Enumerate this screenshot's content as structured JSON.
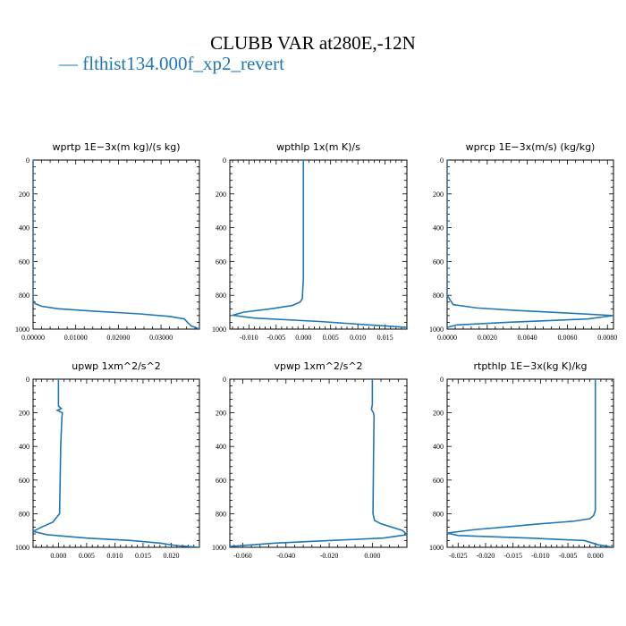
{
  "title": "CLUBB VAR at280E,-12N",
  "legend": {
    "label": "flthist134.000f_xp2_revert",
    "marker": "—",
    "color": "#1f77b4"
  },
  "chart_data": [
    {
      "type": "line",
      "title": "wprtp  1E−3x(m kg)/(s kg)",
      "xlim": [
        0,
        0.039
      ],
      "xticks": [
        0,
        0.01,
        0.02,
        0.03
      ],
      "xticklabels": [
        "0.00000",
        "0.01000",
        "0.02000",
        "0.03000"
      ],
      "ylim": [
        1000,
        0
      ],
      "yticks": [
        0,
        200,
        400,
        600,
        800,
        1000
      ],
      "yticklabels": [
        "0",
        "200",
        "400",
        "600",
        "800",
        "1000"
      ],
      "series": [
        {
          "color": "#1f77b4",
          "x": [
            0,
            0,
            0,
            0.0005,
            0.002,
            0.006,
            0.015,
            0.025,
            0.032,
            0.0355,
            0.036,
            0.037,
            0.039
          ],
          "y": [
            0,
            500,
            830,
            850,
            865,
            880,
            895,
            910,
            925,
            940,
            955,
            980,
            1000
          ]
        }
      ]
    },
    {
      "type": "line",
      "title": "wpthlp  1x(m K)/s",
      "xlim": [
        -0.0135,
        0.019
      ],
      "xticks": [
        -0.01,
        -0.005,
        0,
        0.005,
        0.01,
        0.015
      ],
      "xticklabels": [
        "-0.010",
        "-0.005",
        "0.000",
        "0.005",
        "0.010",
        "0.015"
      ],
      "ylim": [
        1000,
        0
      ],
      "yticks": [
        0,
        200,
        400,
        600,
        800,
        1000
      ],
      "yticklabels": [
        "0",
        "200",
        "400",
        "600",
        "800",
        "1000"
      ],
      "series": [
        {
          "color": "#1f77b4",
          "x": [
            0,
            0,
            -0.0002,
            -0.0006,
            -0.002,
            -0.006,
            -0.011,
            -0.013,
            -0.009,
            0.003,
            0.012,
            0.019
          ],
          "y": [
            0,
            700,
            820,
            840,
            860,
            880,
            900,
            918,
            935,
            955,
            975,
            990
          ]
        }
      ]
    },
    {
      "type": "line",
      "title": "wprcp  1E−3x(m/s) (kg/kg)",
      "xlim": [
        0,
        0.0083
      ],
      "xticks": [
        0,
        0.002,
        0.004,
        0.006,
        0.008
      ],
      "xticklabels": [
        "0.0000",
        "0.0020",
        "0.0040",
        "0.0060",
        "0.0080"
      ],
      "ylim": [
        1000,
        0
      ],
      "yticks": [
        0,
        200,
        400,
        600,
        800,
        1000
      ],
      "yticklabels": [
        "0",
        "200",
        "400",
        "600",
        "800",
        "1000"
      ],
      "series": [
        {
          "color": "#1f77b4",
          "x": [
            0,
            0,
            0.0003,
            0.0015,
            0.0035,
            0.006,
            0.0083,
            0.007,
            0.003,
            0.0005,
            0
          ],
          "y": [
            0,
            800,
            855,
            875,
            890,
            905,
            920,
            940,
            960,
            975,
            990
          ]
        }
      ]
    },
    {
      "type": "line",
      "title": "upwp  1xm^2/s^2",
      "xlim": [
        -0.0045,
        0.025
      ],
      "xticks": [
        0,
        0.005,
        0.01,
        0.015,
        0.02
      ],
      "xticklabels": [
        "0.000",
        "0.005",
        "0.010",
        "0.015",
        "0.020"
      ],
      "ylim": [
        1000,
        0
      ],
      "yticks": [
        0,
        200,
        400,
        600,
        800,
        1000
      ],
      "yticklabels": [
        "0",
        "200",
        "400",
        "600",
        "800",
        "1000"
      ],
      "series": [
        {
          "color": "#1f77b4",
          "x": [
            0,
            0,
            0.0005,
            -0.0002,
            0.0007,
            0.0006,
            0.0004,
            0.0002,
            -0.001,
            -0.003,
            -0.0045,
            -0.002,
            0.005,
            0.013,
            0.018,
            0.021,
            0.025
          ],
          "y": [
            0,
            160,
            175,
            185,
            200,
            230,
            400,
            800,
            850,
            880,
            905,
            925,
            945,
            960,
            975,
            990,
            1000
          ]
        }
      ]
    },
    {
      "type": "line",
      "title": "vpwp  1xm^2/s^2",
      "xlim": [
        -0.066,
        0.016
      ],
      "xticks": [
        -0.06,
        -0.04,
        -0.02,
        0
      ],
      "xticklabels": [
        "-0.060",
        "-0.040",
        "-0.020",
        "0.000"
      ],
      "ylim": [
        1000,
        0
      ],
      "yticks": [
        0,
        200,
        400,
        600,
        800,
        1000
      ],
      "yticklabels": [
        "0",
        "200",
        "400",
        "600",
        "800",
        "1000"
      ],
      "series": [
        {
          "color": "#1f77b4",
          "x": [
            0,
            0,
            -0.0004,
            0.0005,
            0.0008,
            0.0006,
            0.0003,
            0.001,
            0.004,
            0.009,
            0.014,
            0.016,
            0.005,
            -0.02,
            -0.045,
            -0.066
          ],
          "y": [
            0,
            150,
            180,
            200,
            220,
            400,
            800,
            840,
            860,
            880,
            900,
            925,
            945,
            960,
            975,
            995
          ]
        }
      ]
    },
    {
      "type": "line",
      "title": "rtpthlp  1E−3x(kg K)/kg",
      "xlim": [
        -0.027,
        0.0033
      ],
      "xticks": [
        -0.025,
        -0.02,
        -0.015,
        -0.01,
        -0.005,
        0
      ],
      "xticklabels": [
        "-0.025",
        "-0.020",
        "-0.015",
        "-0.010",
        "-0.005",
        "0.000"
      ],
      "ylim": [
        1000,
        0
      ],
      "yticks": [
        0,
        200,
        400,
        600,
        800,
        1000
      ],
      "yticklabels": [
        "0",
        "200",
        "400",
        "600",
        "800",
        "1000"
      ],
      "series": [
        {
          "color": "#1f77b4",
          "x": [
            0,
            0,
            -0.0003,
            -0.001,
            -0.004,
            -0.01,
            -0.016,
            -0.022,
            -0.027,
            -0.025,
            -0.012,
            -0.002,
            0.0005,
            0.0033
          ],
          "y": [
            0,
            780,
            810,
            830,
            845,
            860,
            878,
            895,
            915,
            930,
            945,
            960,
            985,
            1000
          ]
        }
      ]
    }
  ]
}
